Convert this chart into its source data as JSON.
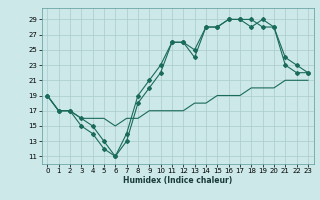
{
  "xlabel": "Humidex (Indice chaleur)",
  "bg_color": "#cce8e8",
  "grid_color": "#aacccc",
  "line_color": "#1a6b5a",
  "xlim": [
    -0.5,
    23.5
  ],
  "ylim": [
    10.0,
    30.5
  ],
  "yticks": [
    11,
    13,
    15,
    17,
    19,
    21,
    23,
    25,
    27,
    29
  ],
  "xticks": [
    0,
    1,
    2,
    3,
    4,
    5,
    6,
    7,
    8,
    9,
    10,
    11,
    12,
    13,
    14,
    15,
    16,
    17,
    18,
    19,
    20,
    21,
    22,
    23
  ],
  "line1_x": [
    0,
    1,
    2,
    3,
    4,
    5,
    6,
    7,
    8,
    9,
    10,
    11,
    12,
    13,
    14,
    15,
    16,
    17,
    18,
    19,
    20,
    21,
    22,
    23
  ],
  "line1_y": [
    19,
    17,
    17,
    15,
    14,
    12,
    11,
    13,
    18,
    20,
    22,
    26,
    26,
    24,
    28,
    28,
    29,
    29,
    29,
    28,
    28,
    23,
    22,
    22
  ],
  "line2_x": [
    0,
    1,
    2,
    3,
    4,
    5,
    6,
    7,
    8,
    9,
    10,
    11,
    12,
    13,
    14,
    15,
    16,
    17,
    18,
    19,
    20,
    21,
    22,
    23
  ],
  "line2_y": [
    19,
    17,
    17,
    16,
    15,
    13,
    11,
    14,
    19,
    21,
    23,
    26,
    26,
    25,
    28,
    28,
    29,
    29,
    28,
    29,
    28,
    24,
    23,
    22
  ],
  "line3_x": [
    0,
    1,
    2,
    3,
    4,
    5,
    6,
    7,
    8,
    9,
    10,
    11,
    12,
    13,
    14,
    15,
    16,
    17,
    18,
    19,
    20,
    21,
    22,
    23
  ],
  "line3_y": [
    19,
    17,
    17,
    16,
    16,
    16,
    15,
    16,
    16,
    17,
    17,
    17,
    17,
    18,
    18,
    19,
    19,
    19,
    20,
    20,
    20,
    21,
    21,
    21
  ]
}
